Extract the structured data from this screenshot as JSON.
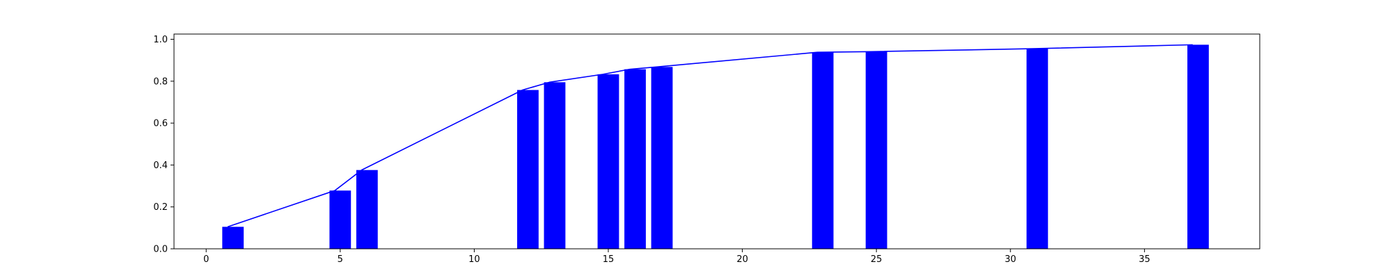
{
  "chart_data": {
    "type": "bar",
    "title": "",
    "xlabel": "",
    "ylabel": "",
    "xlim": [
      -1.2,
      39.3
    ],
    "ylim": [
      0,
      1.025
    ],
    "xticks": [
      0,
      5,
      10,
      15,
      20,
      25,
      30,
      35
    ],
    "xtick_labels": [
      "0",
      "5",
      "10",
      "15",
      "20",
      "25",
      "30",
      "35"
    ],
    "yticks": [
      0.0,
      0.2,
      0.4,
      0.6,
      0.8,
      1.0
    ],
    "ytick_labels": [
      "0.0",
      "0.2",
      "0.4",
      "0.6",
      "0.8",
      "1.0"
    ],
    "grid": false,
    "legend": "none",
    "series": [
      {
        "type": "bar",
        "color": "#0000ff",
        "bar_width": 0.8,
        "x": [
          1,
          5,
          6,
          12,
          13,
          15,
          16,
          17,
          23,
          25,
          31,
          37
        ],
        "values": [
          0.105,
          0.278,
          0.376,
          0.758,
          0.795,
          0.833,
          0.857,
          0.868,
          0.938,
          0.941,
          0.955,
          0.974
        ]
      },
      {
        "type": "line",
        "color": "#0000ff",
        "x": [
          0.8,
          4.8,
          5.8,
          11.8,
          12.8,
          14.8,
          15.8,
          16.8,
          22.8,
          24.8,
          30.8,
          36.8
        ],
        "values": [
          0.105,
          0.278,
          0.376,
          0.758,
          0.795,
          0.833,
          0.857,
          0.868,
          0.938,
          0.941,
          0.955,
          0.974
        ]
      }
    ]
  }
}
